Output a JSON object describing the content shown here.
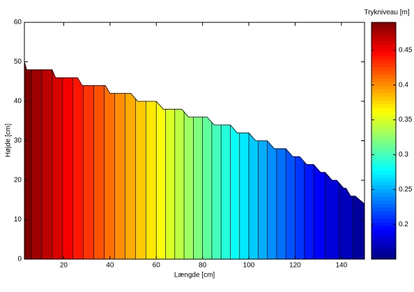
{
  "chart_data": {
    "type": "contourf",
    "xlabel": "Længde [cm]",
    "ylabel": "Højde [cm]",
    "xlim": [
      3,
      150
    ],
    "ylim": [
      0,
      60
    ],
    "xticks": [
      20,
      40,
      60,
      80,
      100,
      120,
      140
    ],
    "yticks": [
      0,
      10,
      20,
      30,
      40,
      50,
      60
    ],
    "boundary": {
      "x": [
        3,
        4,
        15,
        16.5,
        26,
        28,
        38,
        40,
        49,
        52,
        60,
        63,
        71,
        74,
        82,
        85,
        92,
        95,
        100,
        103,
        108,
        111,
        116,
        119,
        122,
        125,
        128,
        131,
        133,
        136,
        138,
        141,
        142,
        144,
        146,
        150
      ],
      "y": [
        50,
        48,
        48,
        46,
        46,
        44,
        44,
        42,
        42,
        40,
        40,
        38,
        38,
        36,
        36,
        34,
        34,
        32,
        32,
        30,
        30,
        28,
        28,
        26,
        26,
        24,
        24,
        22,
        22,
        20,
        20,
        18,
        18,
        16,
        16,
        14
      ]
    },
    "levels": [
      0.48,
      0.47,
      0.46,
      0.45,
      0.44,
      0.43,
      0.42,
      0.41,
      0.4,
      0.39,
      0.38,
      0.37,
      0.36,
      0.35,
      0.34,
      0.33,
      0.32,
      0.31,
      0.3,
      0.29,
      0.28,
      0.27,
      0.26,
      0.25,
      0.24,
      0.23,
      0.22,
      0.21,
      0.2,
      0.19,
      0.18,
      0.17,
      0.16
    ],
    "contour_x": [
      6,
      10.5,
      15,
      19.5,
      24,
      28.5,
      33,
      37.5,
      42,
      46.5,
      51,
      55.5,
      60,
      64,
      68,
      72,
      76,
      80,
      84,
      88,
      92,
      96,
      100,
      104,
      108,
      112,
      116,
      120,
      124,
      128,
      133,
      139,
      145
    ],
    "colorbar": {
      "label": "Trykniveau [m]",
      "clim": [
        0.15,
        0.49
      ],
      "ticks": [
        0.2,
        0.25,
        0.3,
        0.35,
        0.4,
        0.45
      ],
      "colormap": "jet"
    }
  }
}
